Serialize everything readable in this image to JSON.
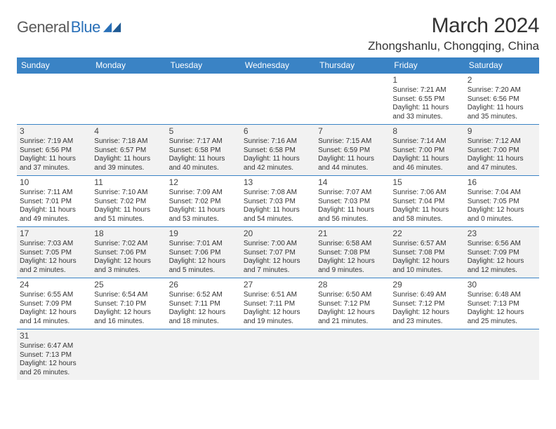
{
  "logo": {
    "text_general": "General",
    "text_blue": "Blue",
    "triangle_color": "#2970b8"
  },
  "header": {
    "title": "March 2024",
    "location": "Zhongshanlu, Chongqing, China"
  },
  "colors": {
    "header_bg": "#3a83c5",
    "header_fg": "#ffffff",
    "row_alt": "#f2f2f2",
    "border": "#3a83c5",
    "text": "#333333"
  },
  "weekdays": [
    "Sunday",
    "Monday",
    "Tuesday",
    "Wednesday",
    "Thursday",
    "Friday",
    "Saturday"
  ],
  "weeks": [
    [
      null,
      null,
      null,
      null,
      null,
      {
        "d": "1",
        "sr": "7:21 AM",
        "ss": "6:55 PM",
        "dl": "11 hours and 33 minutes."
      },
      {
        "d": "2",
        "sr": "7:20 AM",
        "ss": "6:56 PM",
        "dl": "11 hours and 35 minutes."
      }
    ],
    [
      {
        "d": "3",
        "sr": "7:19 AM",
        "ss": "6:56 PM",
        "dl": "11 hours and 37 minutes."
      },
      {
        "d": "4",
        "sr": "7:18 AM",
        "ss": "6:57 PM",
        "dl": "11 hours and 39 minutes."
      },
      {
        "d": "5",
        "sr": "7:17 AM",
        "ss": "6:58 PM",
        "dl": "11 hours and 40 minutes."
      },
      {
        "d": "6",
        "sr": "7:16 AM",
        "ss": "6:58 PM",
        "dl": "11 hours and 42 minutes."
      },
      {
        "d": "7",
        "sr": "7:15 AM",
        "ss": "6:59 PM",
        "dl": "11 hours and 44 minutes."
      },
      {
        "d": "8",
        "sr": "7:14 AM",
        "ss": "7:00 PM",
        "dl": "11 hours and 46 minutes."
      },
      {
        "d": "9",
        "sr": "7:12 AM",
        "ss": "7:00 PM",
        "dl": "11 hours and 47 minutes."
      }
    ],
    [
      {
        "d": "10",
        "sr": "7:11 AM",
        "ss": "7:01 PM",
        "dl": "11 hours and 49 minutes."
      },
      {
        "d": "11",
        "sr": "7:10 AM",
        "ss": "7:02 PM",
        "dl": "11 hours and 51 minutes."
      },
      {
        "d": "12",
        "sr": "7:09 AM",
        "ss": "7:02 PM",
        "dl": "11 hours and 53 minutes."
      },
      {
        "d": "13",
        "sr": "7:08 AM",
        "ss": "7:03 PM",
        "dl": "11 hours and 54 minutes."
      },
      {
        "d": "14",
        "sr": "7:07 AM",
        "ss": "7:03 PM",
        "dl": "11 hours and 56 minutes."
      },
      {
        "d": "15",
        "sr": "7:06 AM",
        "ss": "7:04 PM",
        "dl": "11 hours and 58 minutes."
      },
      {
        "d": "16",
        "sr": "7:04 AM",
        "ss": "7:05 PM",
        "dl": "12 hours and 0 minutes."
      }
    ],
    [
      {
        "d": "17",
        "sr": "7:03 AM",
        "ss": "7:05 PM",
        "dl": "12 hours and 2 minutes."
      },
      {
        "d": "18",
        "sr": "7:02 AM",
        "ss": "7:06 PM",
        "dl": "12 hours and 3 minutes."
      },
      {
        "d": "19",
        "sr": "7:01 AM",
        "ss": "7:06 PM",
        "dl": "12 hours and 5 minutes."
      },
      {
        "d": "20",
        "sr": "7:00 AM",
        "ss": "7:07 PM",
        "dl": "12 hours and 7 minutes."
      },
      {
        "d": "21",
        "sr": "6:58 AM",
        "ss": "7:08 PM",
        "dl": "12 hours and 9 minutes."
      },
      {
        "d": "22",
        "sr": "6:57 AM",
        "ss": "7:08 PM",
        "dl": "12 hours and 10 minutes."
      },
      {
        "d": "23",
        "sr": "6:56 AM",
        "ss": "7:09 PM",
        "dl": "12 hours and 12 minutes."
      }
    ],
    [
      {
        "d": "24",
        "sr": "6:55 AM",
        "ss": "7:09 PM",
        "dl": "12 hours and 14 minutes."
      },
      {
        "d": "25",
        "sr": "6:54 AM",
        "ss": "7:10 PM",
        "dl": "12 hours and 16 minutes."
      },
      {
        "d": "26",
        "sr": "6:52 AM",
        "ss": "7:11 PM",
        "dl": "12 hours and 18 minutes."
      },
      {
        "d": "27",
        "sr": "6:51 AM",
        "ss": "7:11 PM",
        "dl": "12 hours and 19 minutes."
      },
      {
        "d": "28",
        "sr": "6:50 AM",
        "ss": "7:12 PM",
        "dl": "12 hours and 21 minutes."
      },
      {
        "d": "29",
        "sr": "6:49 AM",
        "ss": "7:12 PM",
        "dl": "12 hours and 23 minutes."
      },
      {
        "d": "30",
        "sr": "6:48 AM",
        "ss": "7:13 PM",
        "dl": "12 hours and 25 minutes."
      }
    ],
    [
      {
        "d": "31",
        "sr": "6:47 AM",
        "ss": "7:13 PM",
        "dl": "12 hours and 26 minutes."
      },
      null,
      null,
      null,
      null,
      null,
      null
    ]
  ],
  "labels": {
    "sunrise_prefix": "Sunrise: ",
    "sunset_prefix": "Sunset: ",
    "daylight_prefix": "Daylight: "
  }
}
